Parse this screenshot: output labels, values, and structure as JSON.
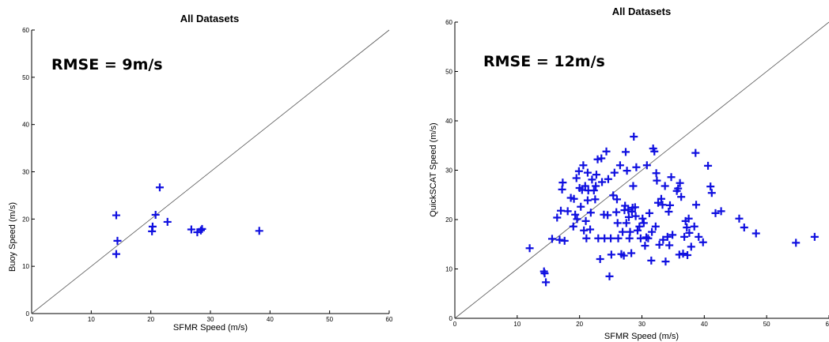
{
  "chart_data": [
    {
      "type": "scatter",
      "title": "All Datasets",
      "annotation": "RMSE = 9m/s",
      "xlabel": "SFMR Speed (m/s)",
      "ylabel": "Buoy Speed (m/s)",
      "xlim": [
        0,
        60
      ],
      "ylim": [
        0,
        60
      ],
      "xticks": [
        0,
        10,
        20,
        30,
        40,
        50,
        60
      ],
      "yticks": [
        0,
        10,
        20,
        30,
        40,
        50,
        60
      ],
      "reference_line": "y = x",
      "marker": "plus",
      "color": "#1010e0",
      "points": [
        [
          14.2,
          12.6
        ],
        [
          14.4,
          15.4
        ],
        [
          14.2,
          20.8
        ],
        [
          20.2,
          17.4
        ],
        [
          20.3,
          18.4
        ],
        [
          20.8,
          20.9
        ],
        [
          21.5,
          26.7
        ],
        [
          22.8,
          19.4
        ],
        [
          26.8,
          17.8
        ],
        [
          27.8,
          17.2
        ],
        [
          28.4,
          17.6
        ],
        [
          28.6,
          17.9
        ],
        [
          38.2,
          17.5
        ]
      ]
    },
    {
      "type": "scatter",
      "title": "All Datasets",
      "annotation": "RMSE = 12m/s",
      "xlabel": "SFMR Speed (m/s)",
      "ylabel": "QuickSCAT Speed (m/s)",
      "xlim": [
        0,
        60
      ],
      "ylim": [
        0,
        60
      ],
      "xticks": [
        0,
        10,
        20,
        30,
        40,
        50,
        60
      ],
      "yticks": [
        0,
        10,
        20,
        30,
        40,
        50,
        60
      ],
      "reference_line": "y = x",
      "marker": "plus",
      "color": "#1010e0",
      "points": [
        [
          12,
          14.2
        ],
        [
          14.3,
          9.5
        ],
        [
          14.4,
          9.1
        ],
        [
          14.6,
          7.3
        ],
        [
          15.6,
          16.1
        ],
        [
          16.4,
          20.4
        ],
        [
          16.8,
          15.9
        ],
        [
          17,
          21.8
        ],
        [
          17.2,
          26.1
        ],
        [
          17.3,
          27.5
        ],
        [
          17.6,
          15.7
        ],
        [
          18.1,
          21.7
        ],
        [
          18.6,
          24.4
        ],
        [
          19,
          18.6
        ],
        [
          19.1,
          24.2
        ],
        [
          19.3,
          21
        ],
        [
          19.5,
          28.4
        ],
        [
          19.6,
          20.1
        ],
        [
          19.9,
          29.8
        ],
        [
          20,
          26.4
        ],
        [
          20.2,
          22.6
        ],
        [
          20.4,
          26
        ],
        [
          20.6,
          31
        ],
        [
          20.7,
          17.8
        ],
        [
          20.9,
          26.8
        ],
        [
          21,
          19.7
        ],
        [
          21.1,
          16.2
        ],
        [
          21.3,
          29.5
        ],
        [
          21.3,
          23.9
        ],
        [
          21.4,
          25.9
        ],
        [
          21.7,
          18
        ],
        [
          21.8,
          21.4
        ],
        [
          22,
          28.1
        ],
        [
          22.3,
          25.9
        ],
        [
          22.5,
          24.1
        ],
        [
          22.6,
          26.8
        ],
        [
          22.7,
          29.1
        ],
        [
          22.9,
          32.2
        ],
        [
          23,
          16.2
        ],
        [
          23.3,
          12
        ],
        [
          23.5,
          32.4
        ],
        [
          23.6,
          27.6
        ],
        [
          23.9,
          21
        ],
        [
          24,
          16.2
        ],
        [
          24.3,
          33.8
        ],
        [
          24.5,
          20.9
        ],
        [
          24.6,
          28.2
        ],
        [
          24.8,
          8.5
        ],
        [
          25,
          16.2
        ],
        [
          25.1,
          12.9
        ],
        [
          25.4,
          24.9
        ],
        [
          25.6,
          29.5
        ],
        [
          25.9,
          21.5
        ],
        [
          26,
          24.1
        ],
        [
          26.1,
          19.3
        ],
        [
          26.2,
          16.2
        ],
        [
          26.5,
          31
        ],
        [
          26.7,
          13
        ],
        [
          26.9,
          17.5
        ],
        [
          27.1,
          12.7
        ],
        [
          27.2,
          21.9
        ],
        [
          27.3,
          22.8
        ],
        [
          27.4,
          33.7
        ],
        [
          27.5,
          19.3
        ],
        [
          27.6,
          29.9
        ],
        [
          27.8,
          22
        ],
        [
          27.9,
          20.5
        ],
        [
          28,
          16.2
        ],
        [
          28.1,
          17.5
        ],
        [
          28.3,
          13.2
        ],
        [
          28.4,
          21.6
        ],
        [
          28.5,
          22.4
        ],
        [
          28.6,
          26.8
        ],
        [
          28.7,
          36.8
        ],
        [
          28.9,
          22.5
        ],
        [
          29,
          20.7
        ],
        [
          29.1,
          30.6
        ],
        [
          29.3,
          17.8
        ],
        [
          29.6,
          18.6
        ],
        [
          29.8,
          16.2
        ],
        [
          30.1,
          20.2
        ],
        [
          30.3,
          19.3
        ],
        [
          30.5,
          14.7
        ],
        [
          30.7,
          16.4
        ],
        [
          30.8,
          31
        ],
        [
          31,
          16.2
        ],
        [
          31.2,
          21.3
        ],
        [
          31.5,
          11.7
        ],
        [
          31.6,
          17.5
        ],
        [
          31.8,
          34.4
        ],
        [
          32,
          33.8
        ],
        [
          32.2,
          18.6
        ],
        [
          32.3,
          29.4
        ],
        [
          32.4,
          27.9
        ],
        [
          32.6,
          23.4
        ],
        [
          32.8,
          14.9
        ],
        [
          33.1,
          24.2
        ],
        [
          33.3,
          23
        ],
        [
          33.4,
          15.9
        ],
        [
          33.7,
          26.8
        ],
        [
          33.8,
          11.5
        ],
        [
          34.1,
          16.5
        ],
        [
          34.3,
          21.6
        ],
        [
          34.4,
          14.8
        ],
        [
          34.5,
          22.9
        ],
        [
          34.7,
          28.6
        ],
        [
          34.9,
          16.9
        ],
        [
          35.6,
          25.8
        ],
        [
          35.8,
          26.3
        ],
        [
          36,
          12.9
        ],
        [
          36.1,
          27.4
        ],
        [
          36.3,
          24.6
        ],
        [
          36.6,
          13.1
        ],
        [
          36.8,
          16.5
        ],
        [
          37,
          19.7
        ],
        [
          37.2,
          18.4
        ],
        [
          37.3,
          12.8
        ],
        [
          37.5,
          20.2
        ],
        [
          37.6,
          17.3
        ],
        [
          37.9,
          14.5
        ],
        [
          38.4,
          18.6
        ],
        [
          38.6,
          33.5
        ],
        [
          38.7,
          23
        ],
        [
          39.1,
          16.5
        ],
        [
          39.8,
          15.4
        ],
        [
          40.6,
          30.9
        ],
        [
          41,
          26.7
        ],
        [
          41.2,
          25.4
        ],
        [
          41.8,
          21.3
        ],
        [
          42.7,
          21.7
        ],
        [
          45.6,
          20.2
        ],
        [
          46.4,
          18.4
        ],
        [
          48.3,
          17.2
        ],
        [
          54.7,
          15.3
        ],
        [
          57.7,
          16.5
        ]
      ]
    }
  ]
}
